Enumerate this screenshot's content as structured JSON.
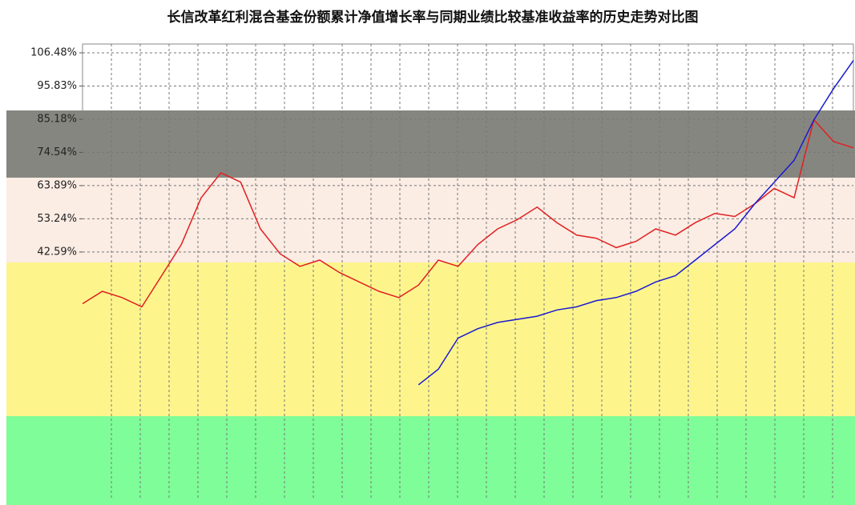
{
  "chart_data": {
    "type": "line",
    "title": "长信改革红利混合基金份额累计净值增长率与同期业绩比较基准收益率的历史走势对比图",
    "categories": [
      null,
      null,
      null,
      null,
      null,
      null,
      null,
      null,
      null,
      null,
      null,
      null,
      null,
      null,
      null,
      null,
      null,
      null,
      null,
      null,
      null,
      null,
      null,
      null,
      null,
      null,
      null,
      null,
      null,
      null,
      null,
      null,
      null,
      null,
      null,
      null,
      null,
      null,
      null,
      null
    ],
    "series": [
      {
        "color": "#e02020",
        "values": [
          26,
          30,
          28,
          25,
          35,
          45,
          60,
          68,
          65,
          50,
          42,
          38,
          40,
          36,
          33,
          30,
          28,
          32,
          40,
          38,
          45,
          50,
          53,
          57,
          52,
          48,
          47,
          44,
          46,
          50,
          48,
          52,
          55,
          54,
          58,
          63,
          60,
          85,
          78,
          76
        ]
      },
      {
        "color": "#1a1ad0",
        "values": [
          null,
          null,
          null,
          null,
          null,
          null,
          null,
          null,
          null,
          null,
          null,
          null,
          null,
          null,
          null,
          null,
          null,
          0,
          5,
          15,
          18,
          20,
          21,
          22,
          24,
          25,
          27,
          28,
          30,
          33,
          35,
          40,
          45,
          50,
          58,
          65,
          72,
          85,
          95,
          104
        ]
      }
    ],
    "ylim": [
      -37,
      109.3
    ],
    "yticks": [
      {
        "value": 106.48,
        "label": "106.48%"
      },
      {
        "value": 95.83,
        "label": "95.83%"
      },
      {
        "value": 85.18,
        "label": "85.18%"
      },
      {
        "value": 74.54,
        "label": "74.54%"
      },
      {
        "value": 63.89,
        "label": "63.89%"
      },
      {
        "value": 53.24,
        "label": "53.24%"
      },
      {
        "value": 42.59,
        "label": "42.59%"
      }
    ],
    "grid": true
  }
}
